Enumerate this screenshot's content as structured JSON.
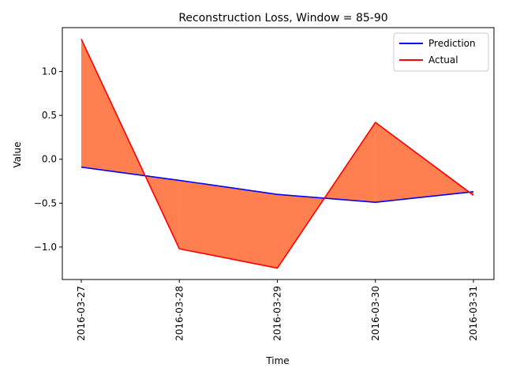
{
  "chart_data": {
    "type": "line",
    "title": "Reconstruction Loss, Window = 85-90",
    "xlabel": "Time",
    "ylabel": "Value",
    "categories": [
      "2016-03-27",
      "2016-03-28",
      "2016-03-29",
      "2016-03-30",
      "2016-03-31"
    ],
    "series": [
      {
        "name": "Prediction",
        "color": "#0000ff",
        "values": [
          -0.09,
          -0.24,
          -0.4,
          -0.49,
          -0.37
        ]
      },
      {
        "name": "Actual",
        "color": "#ff0000",
        "values": [
          1.37,
          -1.02,
          -1.24,
          0.42,
          -0.41
        ]
      }
    ],
    "fill_between": {
      "series": [
        "Prediction",
        "Actual"
      ],
      "color": "#ff7f50"
    },
    "ylim": [
      -1.37,
      1.5
    ],
    "yticks": [
      -1.0,
      -0.5,
      0.0,
      0.5,
      1.0
    ],
    "ytick_labels": [
      "−1.0",
      "−0.5",
      "0.0",
      "0.5",
      "1.0"
    ],
    "grid": false,
    "legend_position": "top-right"
  }
}
